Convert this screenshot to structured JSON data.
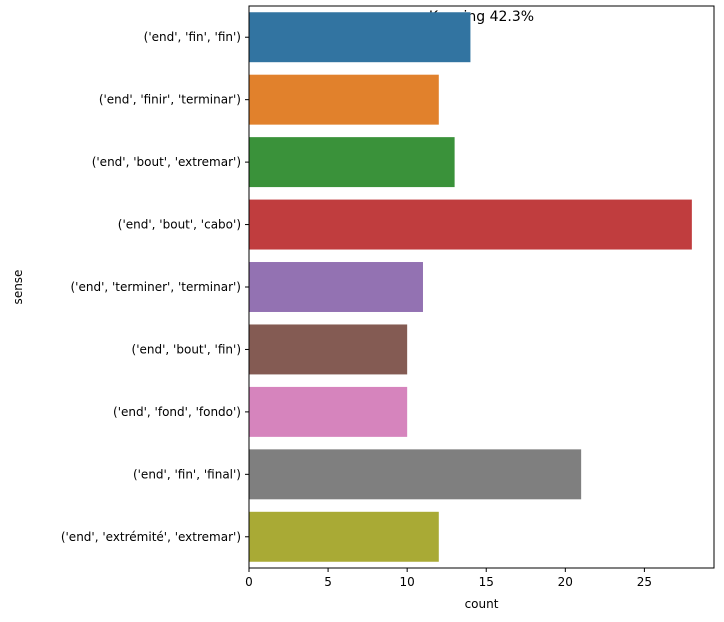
{
  "chart_data": {
    "type": "bar",
    "orientation": "horizontal",
    "title": "Keeping 42.3%",
    "xlabel": "count",
    "ylabel": "sense",
    "xlim": [
      0,
      29.4
    ],
    "xticks": [
      0,
      5,
      10,
      15,
      20,
      25
    ],
    "grid": false,
    "legend": "none",
    "categories": [
      "('end', 'fin', 'fin')",
      "('end', 'finir', 'terminar')",
      "('end', 'bout', 'extremar')",
      "('end', 'bout', 'cabo')",
      "('end', 'terminer', 'terminar')",
      "('end', 'bout', 'fin')",
      "('end', 'fond', 'fondo')",
      "('end', 'fin', 'final')",
      "('end', 'extrémité', 'extremar')"
    ],
    "values": [
      14,
      12,
      13,
      28,
      11,
      10,
      10,
      21,
      12
    ],
    "colors": [
      "#3274a1",
      "#e1812c",
      "#3a923a",
      "#c03d3e",
      "#9372b2",
      "#845b53",
      "#d684bd",
      "#7f7f7f",
      "#a9aa35"
    ]
  }
}
